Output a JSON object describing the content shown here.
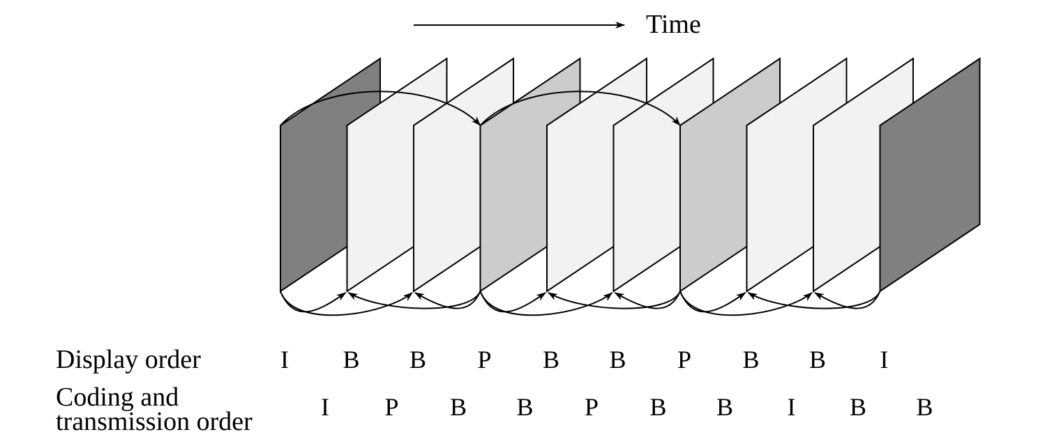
{
  "time_label": "Time",
  "display_order_label": "Display order",
  "coding_order_label_line1": "Coding and",
  "coding_order_label_line2": "transmission order",
  "display_order": [
    "I",
    "B",
    "B",
    "P",
    "B",
    "B",
    "P",
    "B",
    "B",
    "I"
  ],
  "coding_order": [
    "I",
    "P",
    "B",
    "B",
    "P",
    "B",
    "B",
    "I",
    "B",
    "B"
  ],
  "frame_types": [
    "I",
    "B",
    "B",
    "P",
    "B",
    "B",
    "P",
    "B",
    "B",
    "I"
  ],
  "frame_colors": {
    "I": "#808080",
    "P": "#cccccc",
    "B": "#f2f2f2"
  },
  "prediction_arcs": [
    {
      "from": 0,
      "to": 3,
      "kind": "forward"
    },
    {
      "from": 3,
      "to": 6,
      "kind": "forward"
    },
    {
      "from": 0,
      "to": 1,
      "kind": "bidirectional"
    },
    {
      "from": 3,
      "to": 1,
      "kind": "bidirectional"
    },
    {
      "from": 0,
      "to": 2,
      "kind": "bidirectional"
    },
    {
      "from": 3,
      "to": 2,
      "kind": "bidirectional"
    },
    {
      "from": 3,
      "to": 4,
      "kind": "bidirectional"
    },
    {
      "from": 6,
      "to": 4,
      "kind": "bidirectional"
    },
    {
      "from": 3,
      "to": 5,
      "kind": "bidirectional"
    },
    {
      "from": 6,
      "to": 5,
      "kind": "bidirectional"
    },
    {
      "from": 6,
      "to": 7,
      "kind": "bidirectional"
    },
    {
      "from": 9,
      "to": 7,
      "kind": "bidirectional"
    },
    {
      "from": 6,
      "to": 8,
      "kind": "bidirectional"
    },
    {
      "from": 9,
      "to": 8,
      "kind": "bidirectional"
    }
  ]
}
